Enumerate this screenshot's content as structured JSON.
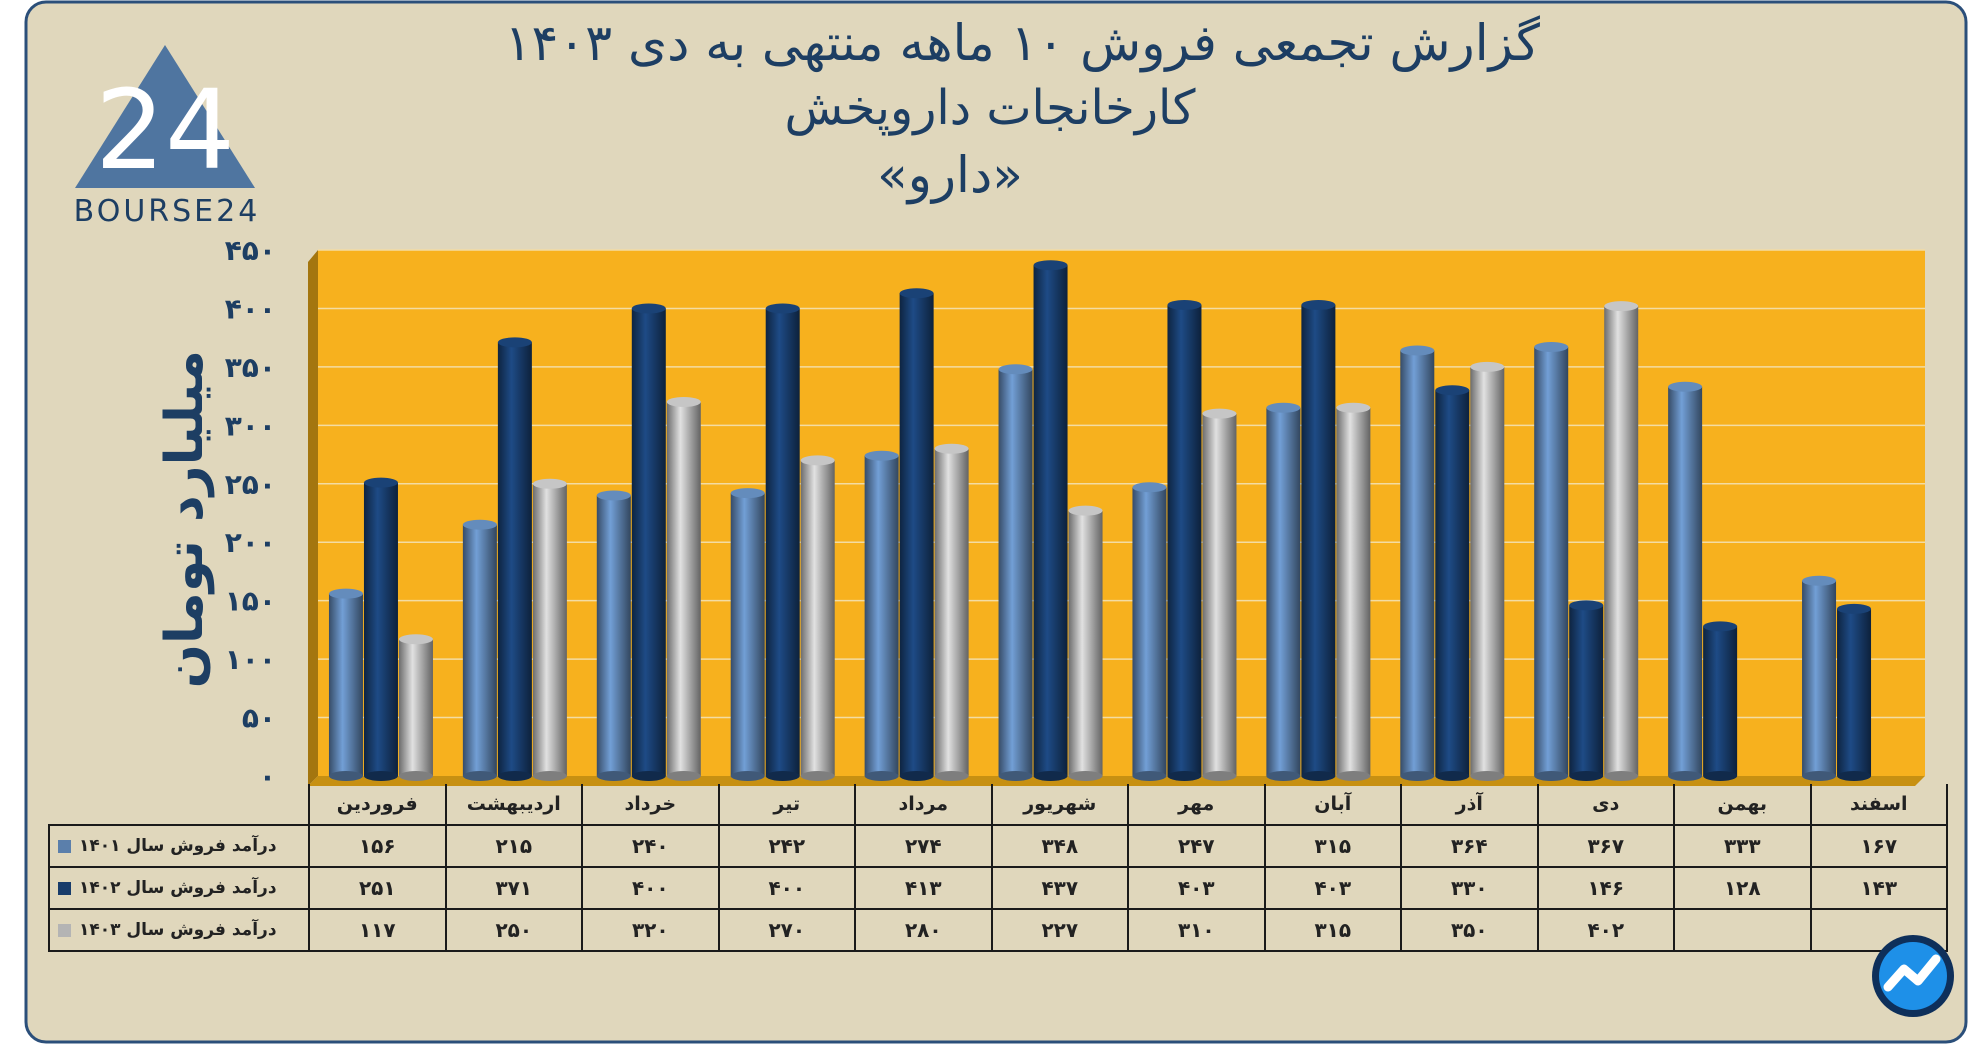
{
  "header": {
    "title_line1": "گزارش تجمعی فروش ۱۰ ماهه منتهی به دی ۱۴۰۳",
    "title_line2": "کارخانجات داروپخش",
    "title_line3": "«دارو»"
  },
  "logo": {
    "text": "BOURSE24",
    "mark": "24"
  },
  "colors": {
    "background": "#e0d7bc",
    "plot_bg": "#f7b11e",
    "series_1401": "#5b7fab",
    "series_1402": "#183c6b",
    "series_1403": "#b4b4b4",
    "title": "#1d3e63"
  },
  "chart_data": {
    "type": "bar",
    "title": "گزارش تجمعی فروش ۱۰ ماهه منتهی به دی ۱۴۰۳",
    "ylabel": "میلیارد تومان",
    "xlabel": "",
    "ylim": [
      0,
      450
    ],
    "yticks": [
      "۰",
      "۵۰",
      "۱۰۰",
      "۱۵۰",
      "۲۰۰",
      "۲۵۰",
      "۳۰۰",
      "۳۵۰",
      "۴۰۰",
      "۴۵۰"
    ],
    "categories": [
      "فروردین",
      "اردیبهشت",
      "خرداد",
      "تیر",
      "مرداد",
      "شهریور",
      "مهر",
      "آبان",
      "آذر",
      "دی",
      "بهمن",
      "اسفند"
    ],
    "series": [
      {
        "name": "درآمد فروش سال ۱۴۰۱",
        "values": [
          156,
          215,
          240,
          242,
          274,
          348,
          247,
          315,
          364,
          367,
          333,
          167
        ],
        "labels": [
          "۱۵۶",
          "۲۱۵",
          "۲۴۰",
          "۲۴۲",
          "۲۷۴",
          "۳۴۸",
          "۲۴۷",
          "۳۱۵",
          "۳۶۴",
          "۳۶۷",
          "۳۳۳",
          "۱۶۷"
        ]
      },
      {
        "name": "درآمد فروش سال ۱۴۰۲",
        "values": [
          251,
          371,
          400,
          400,
          413,
          437,
          403,
          403,
          330,
          146,
          128,
          143
        ],
        "labels": [
          "۲۵۱",
          "۳۷۱",
          "۴۰۰",
          "۴۰۰",
          "۴۱۳",
          "۴۳۷",
          "۴۰۳",
          "۴۰۳",
          "۳۳۰",
          "۱۴۶",
          "۱۲۸",
          "۱۴۳"
        ]
      },
      {
        "name": "درآمد فروش سال ۱۴۰۳",
        "values": [
          117,
          250,
          320,
          270,
          280,
          227,
          310,
          315,
          350,
          402,
          null,
          null
        ],
        "labels": [
          "۱۱۷",
          "۲۵۰",
          "۳۲۰",
          "۲۷۰",
          "۲۸۰",
          "۲۲۷",
          "۳۱۰",
          "۳۱۵",
          "۳۵۰",
          "۴۰۲",
          "",
          ""
        ]
      }
    ],
    "legend": "data-table-below"
  }
}
